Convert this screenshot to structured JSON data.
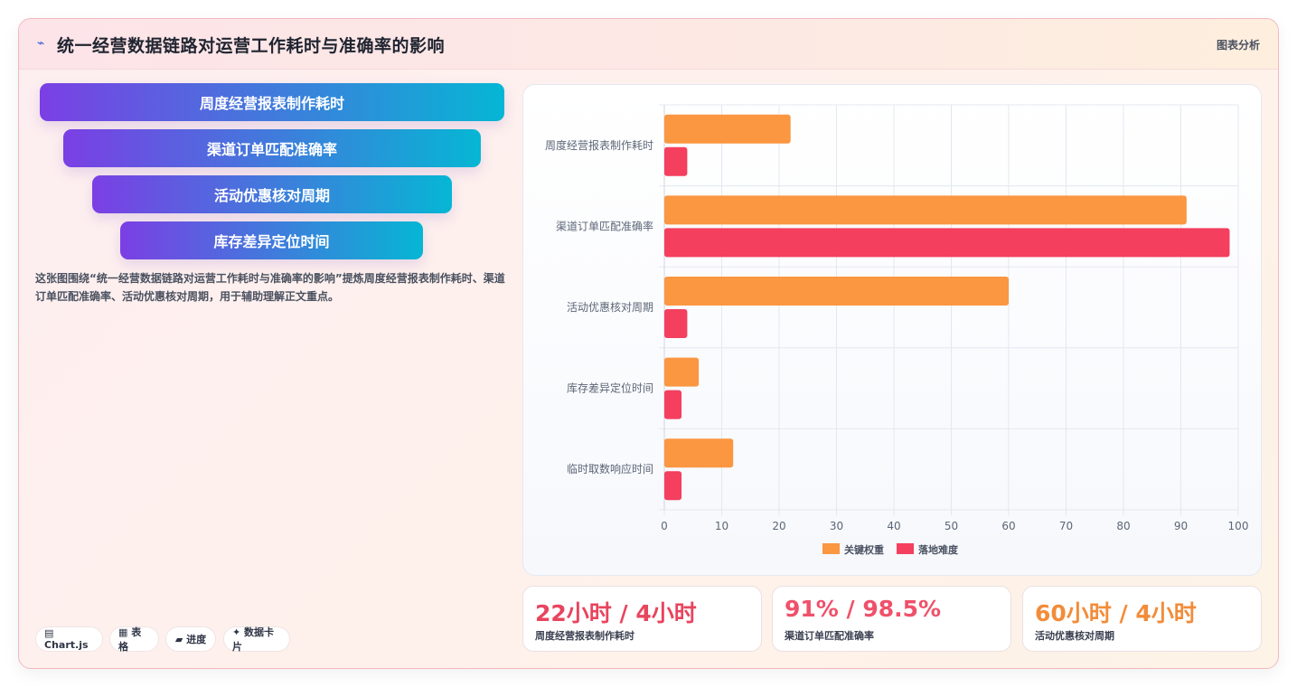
{
  "header": {
    "title": "统一经营数据链路对运营工作耗时与准确率的影响",
    "tag": "图表分析",
    "icon": "chart-line-icon"
  },
  "funnel": [
    "周度经营报表制作耗时",
    "渠道订单匹配准确率",
    "活动优惠核对周期",
    "库存差异定位时间"
  ],
  "description": "这张图围绕“统一经营数据链路对运营工作耗时与准确率的影响”提炼周度经营报表制作耗时、渠道订单匹配准确率、活动优惠核对周期，用于辅助理解正文重点。",
  "chips": [
    "▤ Chart.js",
    "▦ 表格",
    "▰ 进度",
    "✦ 数据卡片"
  ],
  "stats": [
    {
      "value": "22小时 / 4小时",
      "label": "周度经营报表制作耗时",
      "color": "#e8455e"
    },
    {
      "value": "91% / 98.5%",
      "label": "渠道订单匹配准确率",
      "color": "#f0516a"
    },
    {
      "value": "60小时 / 4小时",
      "label": "活动优惠核对周期",
      "color": "#f28c3a"
    }
  ],
  "chart_data": {
    "type": "bar",
    "orientation": "horizontal",
    "categories": [
      "周度经营报表制作耗时",
      "渠道订单匹配准确率",
      "活动优惠核对周期",
      "库存差异定位时间",
      "临时取数响应时间"
    ],
    "series": [
      {
        "name": "关键权重",
        "values": [
          22,
          91,
          60,
          6,
          12
        ],
        "color": "#fb9641"
      },
      {
        "name": "落地难度",
        "values": [
          4,
          98.5,
          4,
          3,
          3
        ],
        "color": "#f43f5e"
      }
    ],
    "xlim": [
      0,
      100
    ],
    "xticks": [
      0,
      10,
      20,
      30,
      40,
      50,
      60,
      70,
      80,
      90,
      100
    ],
    "grid": true,
    "legend": "bottom"
  }
}
